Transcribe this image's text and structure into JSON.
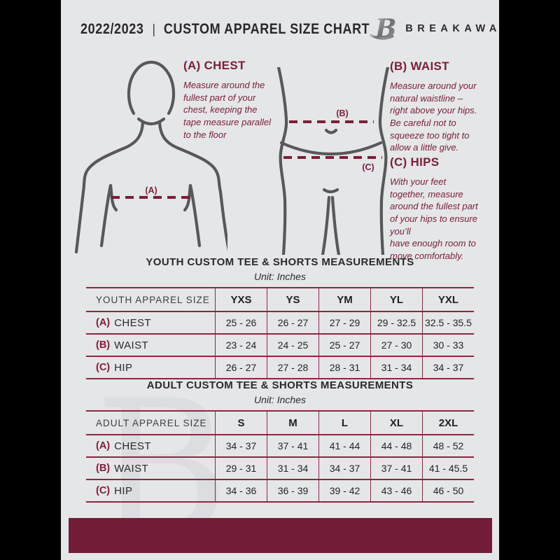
{
  "header": {
    "year": "2022/2023",
    "divider": "|",
    "title": "CUSTOM APPAREL SIZE CHART",
    "brand": "BREAKAWAY",
    "logo_letter": "B"
  },
  "watermark": {
    "letter": "B"
  },
  "guide": {
    "chest": {
      "heading": "(A) CHEST",
      "marker": "(A)",
      "body": "Measure around the\nfullest part of your\nchest, keeping the\ntape measure parallel\nto the floor"
    },
    "waist": {
      "heading": "(B) WAIST",
      "marker": "(B)",
      "body": "Measure around your\nnatural waistline –\nright above your hips.\nBe careful not to\nsqueeze too tight to\nallow a little give."
    },
    "hips": {
      "heading": "(C) HIPS",
      "marker": "(C)",
      "body": "With your feet\ntogether, measure\naround the fullest part\nof your hips to ensure\nyou’ll\nhave enough room to\nmove comfortably."
    }
  },
  "tables": {
    "youth": {
      "title": "YOUTH CUSTOM TEE & SHORTS MEASUREMENTS",
      "subtitle": "Unit: Inches",
      "header": [
        "YOUTH APPAREL SIZE",
        "YXS",
        "YS",
        "YM",
        "YL",
        "YXL"
      ],
      "rows": [
        {
          "prefix": "(A)",
          "label": "CHEST",
          "values": [
            "25 - 26",
            "26 - 27",
            "27 - 29",
            "29 - 32.5",
            "32.5 - 35.5"
          ]
        },
        {
          "prefix": "(B)",
          "label": "WAIST",
          "values": [
            "23 - 24",
            "24 - 25",
            "25 - 27",
            "27 - 30",
            "30 - 33"
          ]
        },
        {
          "prefix": "(C)",
          "label": "HIP",
          "values": [
            "26 - 27",
            "27 - 28",
            "28 - 31",
            "31 - 34",
            "34 - 37"
          ]
        }
      ]
    },
    "adult": {
      "title": "ADULT CUSTOM TEE & SHORTS MEASUREMENTS",
      "subtitle": "Unit: Inches",
      "header": [
        "ADULT APPAREL SIZE",
        "S",
        "M",
        "L",
        "XL",
        "2XL"
      ],
      "rows": [
        {
          "prefix": "(A)",
          "label": "CHEST",
          "values": [
            "34 - 37",
            "37 - 41",
            "41 - 44",
            "44 - 48",
            "48 - 52"
          ]
        },
        {
          "prefix": "(B)",
          "label": "WAIST",
          "values": [
            "29 - 31",
            "31 - 34",
            "34 - 37",
            "37 - 41",
            "41 - 45.5"
          ]
        },
        {
          "prefix": "(C)",
          "label": "HIP",
          "values": [
            "34 - 36",
            "36 - 39",
            "39 - 42",
            "43 - 46",
            "46 - 50"
          ]
        }
      ]
    }
  },
  "colors": {
    "maroon_text": "#7a2038",
    "maroon_dash": "#7a1f36",
    "table_border": "#8c2742",
    "footer_bar": "#731c38",
    "page_background": "#e5e6e8",
    "outline_gray": "#58585b",
    "letterbox_black": "#000000",
    "watermark_gray": "#dcdde0"
  }
}
